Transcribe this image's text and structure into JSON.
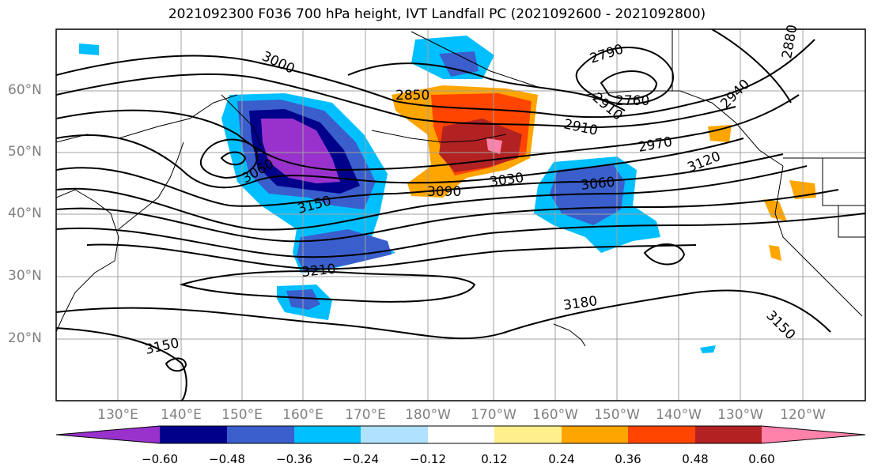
{
  "title": "2021092300 F036 700 hPa height, IVT Landfall PC (2021092600 - 2021092800)",
  "lat_labels": [
    "60°N",
    "50°N",
    "40°N",
    "30°N",
    "20°N"
  ],
  "lon_labels": [
    "130°E",
    "140°E",
    "150°E",
    "160°E",
    "170°E",
    "180°W",
    "170°W",
    "160°W",
    "150°W",
    "140°W",
    "130°W",
    "120°W"
  ],
  "contour_labels": [
    "3000",
    "2850",
    "2790",
    "2760",
    "2910",
    "2970",
    "3030",
    "3060",
    "3090",
    "3060",
    "3150",
    "3120",
    "3210",
    "3180",
    "3150",
    "3150",
    "2880",
    "2910",
    "2940"
  ],
  "colorbar": {
    "ticks": [
      "−0.60",
      "−0.48",
      "−0.36",
      "−0.24",
      "−0.12",
      "0.12",
      "0.24",
      "0.36",
      "0.48",
      "0.60"
    ],
    "colors": [
      "#9932cc",
      "#00008b",
      "#3a5fcd",
      "#00bfff",
      "#b0e2ff",
      "#ffffff",
      "#fff08c",
      "#ffa500",
      "#ff4500",
      "#b22222",
      "#ff82ab"
    ]
  }
}
